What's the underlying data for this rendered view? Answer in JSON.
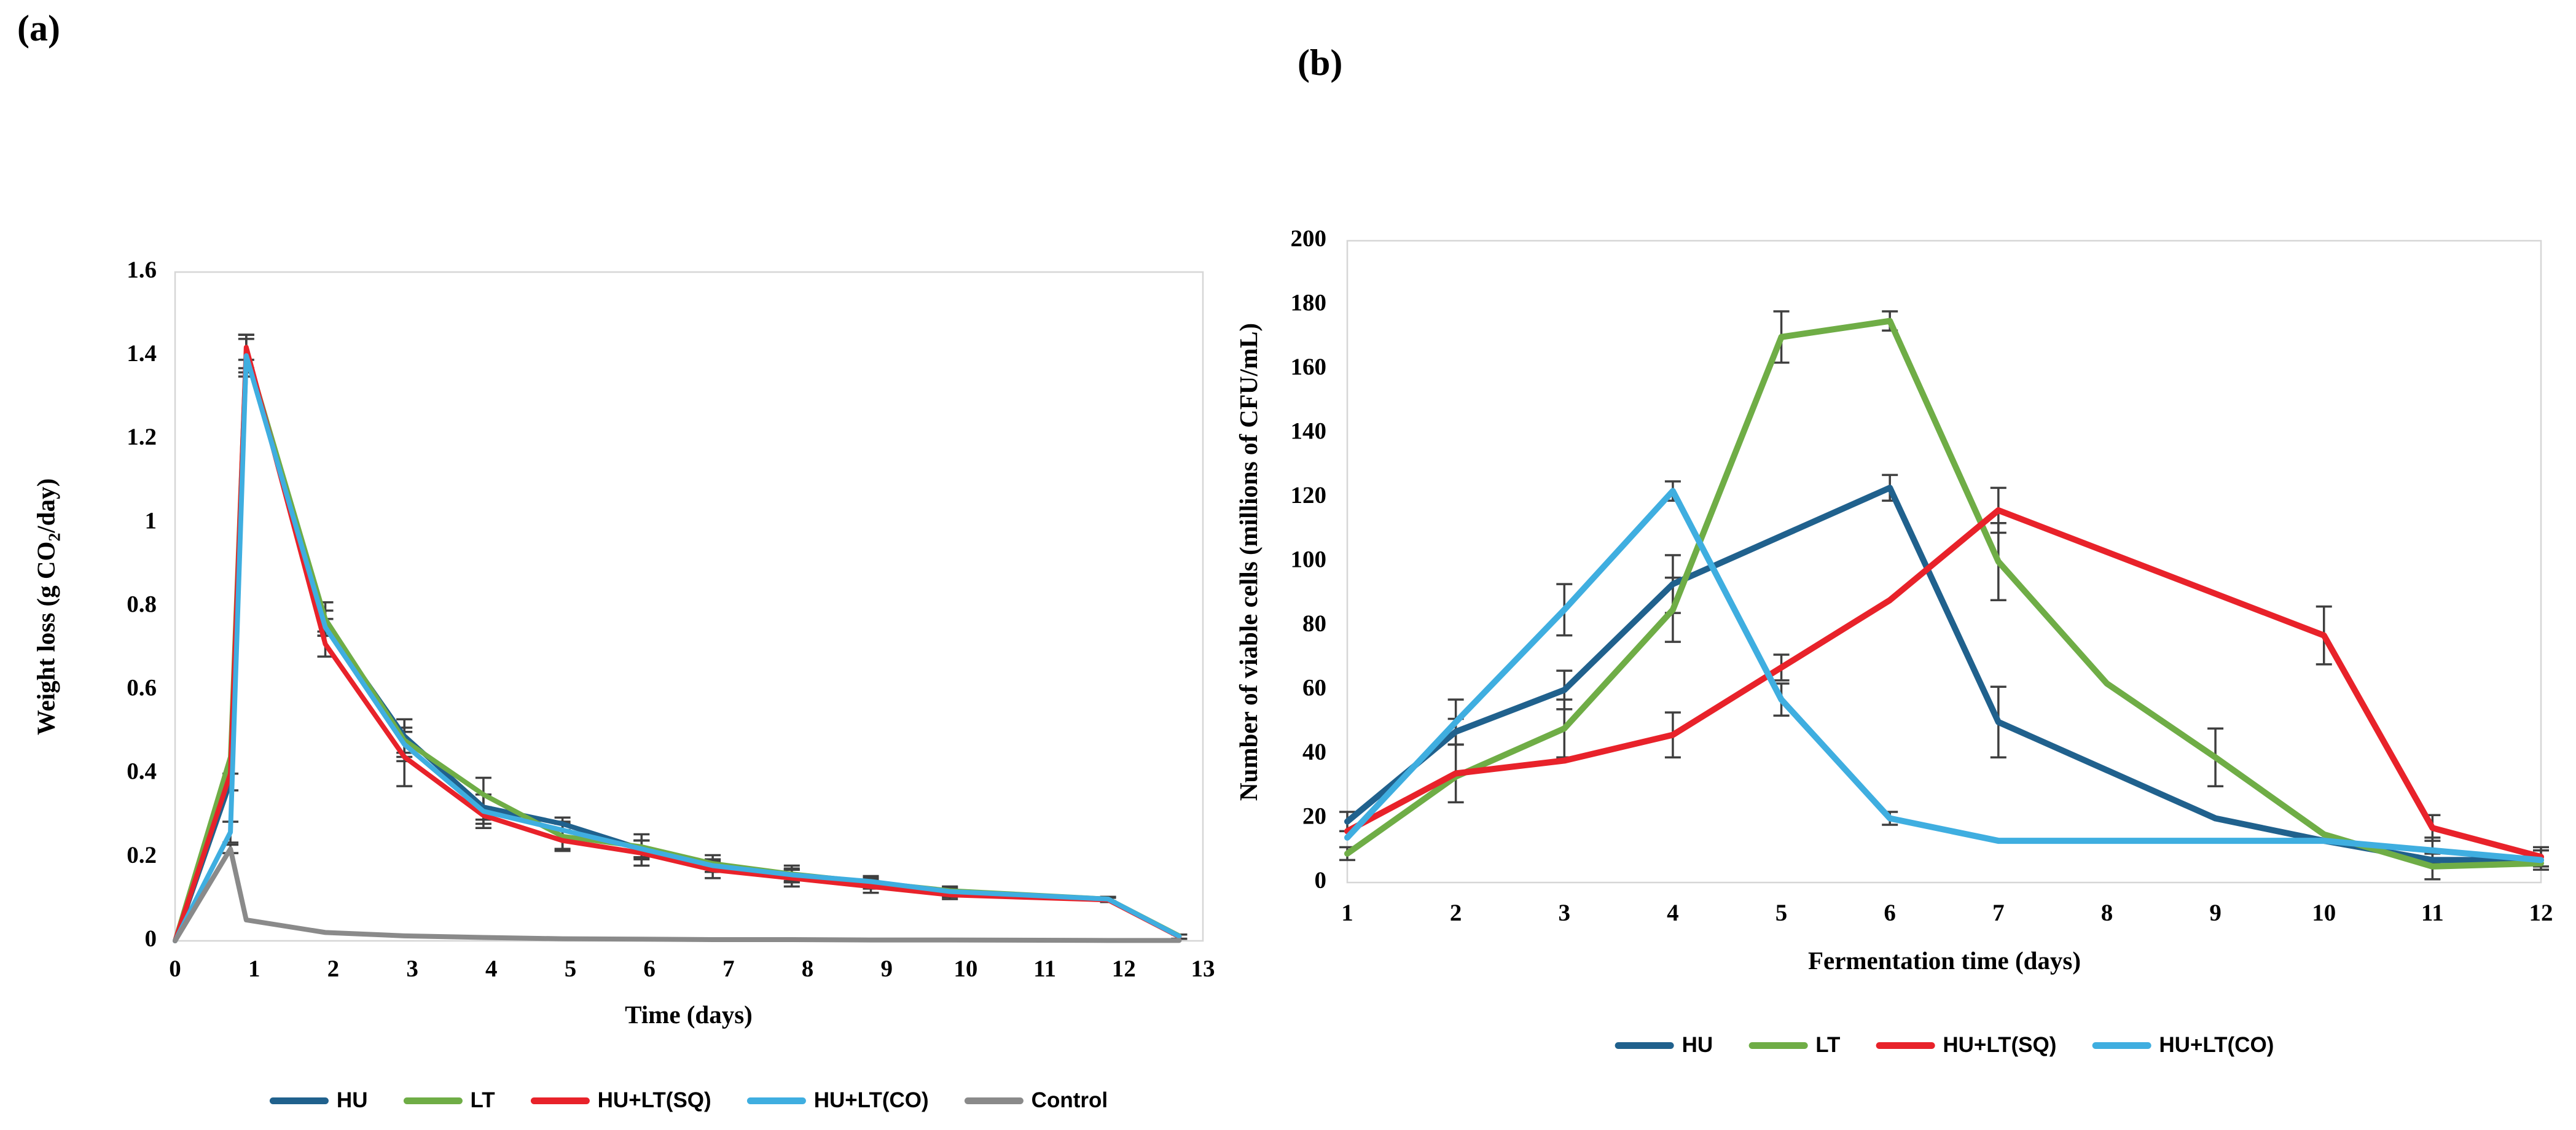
{
  "page": {
    "panel_a_label": "(a)",
    "panel_b_label": "(b)"
  },
  "colors": {
    "hu": "#20618D",
    "lt": "#6FAD46",
    "hu_lt_sq": "#E8222A",
    "hu_lt_co": "#3FAEE0",
    "control": "#8A8A8A",
    "error_bar": "#3F3F3F",
    "axis": "#D6D6D6",
    "text": "#000000"
  },
  "chart_data": [
    {
      "id": "chart-a",
      "type": "line",
      "title": "",
      "xlabel": "Time (days)",
      "ylabel_prefix": "Weight loss (g CO",
      "ylabel_sub": "2",
      "ylabel_suffix": "/day)",
      "xlim": [
        0,
        13
      ],
      "ylim": [
        0,
        1.6
      ],
      "xticks": [
        0,
        1,
        2,
        3,
        4,
        5,
        6,
        7,
        8,
        9,
        10,
        11,
        12,
        13
      ],
      "yticks": [
        0,
        0.2,
        0.4,
        0.6,
        0.8,
        1,
        1.2,
        1.4,
        1.6
      ],
      "ytick_labels": [
        "0",
        "0.2",
        "0.4",
        "0.6",
        "0.8",
        "1",
        "1.2",
        "1.4",
        "1.6"
      ],
      "grid": false,
      "legend_position": "bottom",
      "x": [
        0,
        0.7,
        0.9,
        1.9,
        2.9,
        3.9,
        4.9,
        5.9,
        6.8,
        7.8,
        8.8,
        9.8,
        11.8,
        12.7
      ],
      "series": [
        {
          "name": "HU",
          "color_key": "hu",
          "values": [
            0,
            0.38,
            1.4,
            0.76,
            0.49,
            0.32,
            0.28,
            0.22,
            0.18,
            0.155,
            0.14,
            0.115,
            0.1,
            0.01
          ],
          "errors": [
            0,
            0.02,
            0.05,
            0.03,
            0.04,
            0.03,
            0.015,
            0.02,
            0.015,
            0.015,
            0.01,
            0.01,
            0.005,
            0.005
          ]
        },
        {
          "name": "LT",
          "color_key": "lt",
          "values": [
            0,
            0.44,
            1.41,
            0.77,
            0.48,
            0.35,
            0.25,
            0.225,
            0.185,
            0.16,
            0.14,
            0.12,
            0.1,
            0.012
          ],
          "errors": [
            0,
            0,
            0.04,
            0.04,
            0.05,
            0.04,
            0.03,
            0.03,
            0.02,
            0.02,
            0.015,
            0.01,
            0.005,
            0
          ]
        },
        {
          "name": "HU+LT(SQ)",
          "color_key": "hu_lt_sq",
          "values": [
            0,
            0.4,
            1.42,
            0.71,
            0.44,
            0.3,
            0.24,
            0.21,
            0.17,
            0.15,
            0.13,
            0.11,
            0.098,
            0.01
          ],
          "errors": [
            0,
            0,
            0.03,
            0.03,
            0.07,
            0.02,
            0.025,
            0.03,
            0.02,
            0.02,
            0.015,
            0.01,
            0.005,
            0.005
          ]
        },
        {
          "name": "HU+LT(CO)",
          "color_key": "hu_lt_co",
          "values": [
            0,
            0.26,
            1.4,
            0.75,
            0.47,
            0.31,
            0.265,
            0.22,
            0.18,
            0.158,
            0.142,
            0.118,
            0.1,
            0.011
          ],
          "errors": [
            0,
            0.025,
            0.04,
            0.02,
            0.03,
            0.04,
            0.02,
            0.02,
            0.015,
            0.015,
            0.01,
            0.01,
            0.005,
            0
          ]
        },
        {
          "name": "Control",
          "color_key": "control",
          "values": [
            0,
            0.22,
            0.05,
            0.02,
            0.012,
            0.008,
            0.005,
            0.004,
            0.003,
            0.003,
            0.002,
            0.002,
            0.001,
            0.001
          ],
          "errors": [
            0,
            0.01,
            0,
            0,
            0,
            0,
            0,
            0,
            0,
            0,
            0,
            0,
            0,
            0
          ]
        }
      ]
    },
    {
      "id": "chart-b",
      "type": "line",
      "title": "",
      "xlabel": "Fermentation time (days)",
      "ylabel": "Number of viable cells (millions of CFU/mL)",
      "xlim": [
        1,
        12
      ],
      "ylim": [
        0,
        200
      ],
      "xticks": [
        1,
        2,
        3,
        4,
        5,
        6,
        7,
        8,
        9,
        10,
        11,
        12
      ],
      "yticks": [
        0,
        20,
        40,
        60,
        80,
        100,
        120,
        140,
        160,
        180,
        200
      ],
      "ytick_labels": [
        "0",
        "20",
        "40",
        "60",
        "80",
        "100",
        "120",
        "140",
        "160",
        "180",
        "200"
      ],
      "grid": false,
      "legend_position": "bottom",
      "x": [
        1,
        2,
        3,
        4,
        5,
        6,
        7,
        8,
        9,
        10,
        11,
        12
      ],
      "series": [
        {
          "name": "HU",
          "color_key": "hu",
          "values": [
            19,
            47,
            60,
            93,
            108,
            123,
            50,
            35,
            20,
            13,
            7,
            7
          ],
          "errors": [
            3,
            4,
            6,
            9,
            0,
            4,
            11,
            0,
            0,
            0,
            0,
            0
          ]
        },
        {
          "name": "LT",
          "color_key": "lt",
          "values": [
            9,
            33,
            48,
            85,
            170,
            175,
            100,
            62,
            39,
            15,
            5,
            6
          ],
          "errors": [
            2,
            0,
            9,
            10,
            8,
            3,
            12,
            0,
            9,
            0,
            4,
            0
          ]
        },
        {
          "name": "HU+LT(SQ)",
          "color_key": "hu_lt_sq",
          "values": [
            16,
            34,
            38,
            46,
            67,
            88,
            116,
            103,
            90,
            77,
            17,
            8
          ],
          "errors": [
            0,
            9,
            0,
            7,
            4,
            0,
            7,
            0,
            0,
            9,
            4,
            3
          ]
        },
        {
          "name": "HU+LT(CO)",
          "color_key": "hu_lt_co",
          "values": [
            14,
            50,
            85,
            122,
            57,
            20,
            13,
            13,
            13,
            13,
            10,
            7
          ],
          "errors": [
            0,
            7,
            8,
            3,
            5,
            2,
            0,
            0,
            0,
            0,
            4,
            3
          ]
        }
      ]
    }
  ]
}
